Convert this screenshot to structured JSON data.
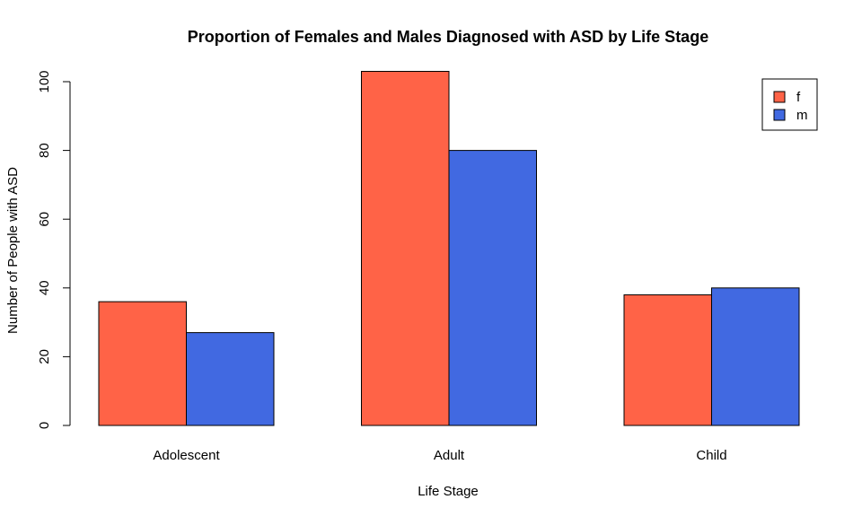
{
  "chart_data": {
    "type": "bar",
    "title": "Proportion of Females and Males Diagnosed with ASD by Life Stage",
    "xlabel": "Life Stage",
    "ylabel": "Number of People with ASD",
    "categories": [
      "Adolescent",
      "Adult",
      "Child"
    ],
    "series": [
      {
        "name": "f",
        "color": "#FF6347",
        "values": [
          36,
          103,
          38
        ]
      },
      {
        "name": "m",
        "color": "#4169E1",
        "values": [
          27,
          80,
          40
        ]
      }
    ],
    "ylim": [
      0,
      100
    ],
    "yticks": [
      "0",
      "20",
      "40",
      "60",
      "80",
      "100"
    ],
    "grid": false,
    "legend_position": "top-right"
  }
}
